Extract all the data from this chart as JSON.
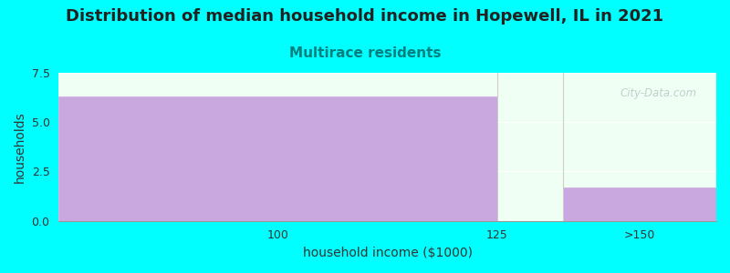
{
  "title": "Distribution of median household income in Hopewell, IL in 2021",
  "subtitle": "Multirace residents",
  "subtitle_color": "#008080",
  "xlabel": "household income ($1000)",
  "ylabel": "households",
  "background_color": "#00ffff",
  "plot_bg_color": "#f0fff4",
  "bar_color": "#c9a8e0",
  "bar_edge_color": "#c9a8e0",
  "values": [
    6.3,
    1.7
  ],
  "ylim": [
    0,
    7.5
  ],
  "yticks": [
    0,
    2.5,
    5,
    7.5
  ],
  "xtick_labels": [
    "100",
    "125",
    ">150"
  ],
  "title_fontsize": 13,
  "subtitle_fontsize": 11,
  "axis_label_fontsize": 10,
  "tick_fontsize": 9,
  "watermark": "City-Data.com"
}
